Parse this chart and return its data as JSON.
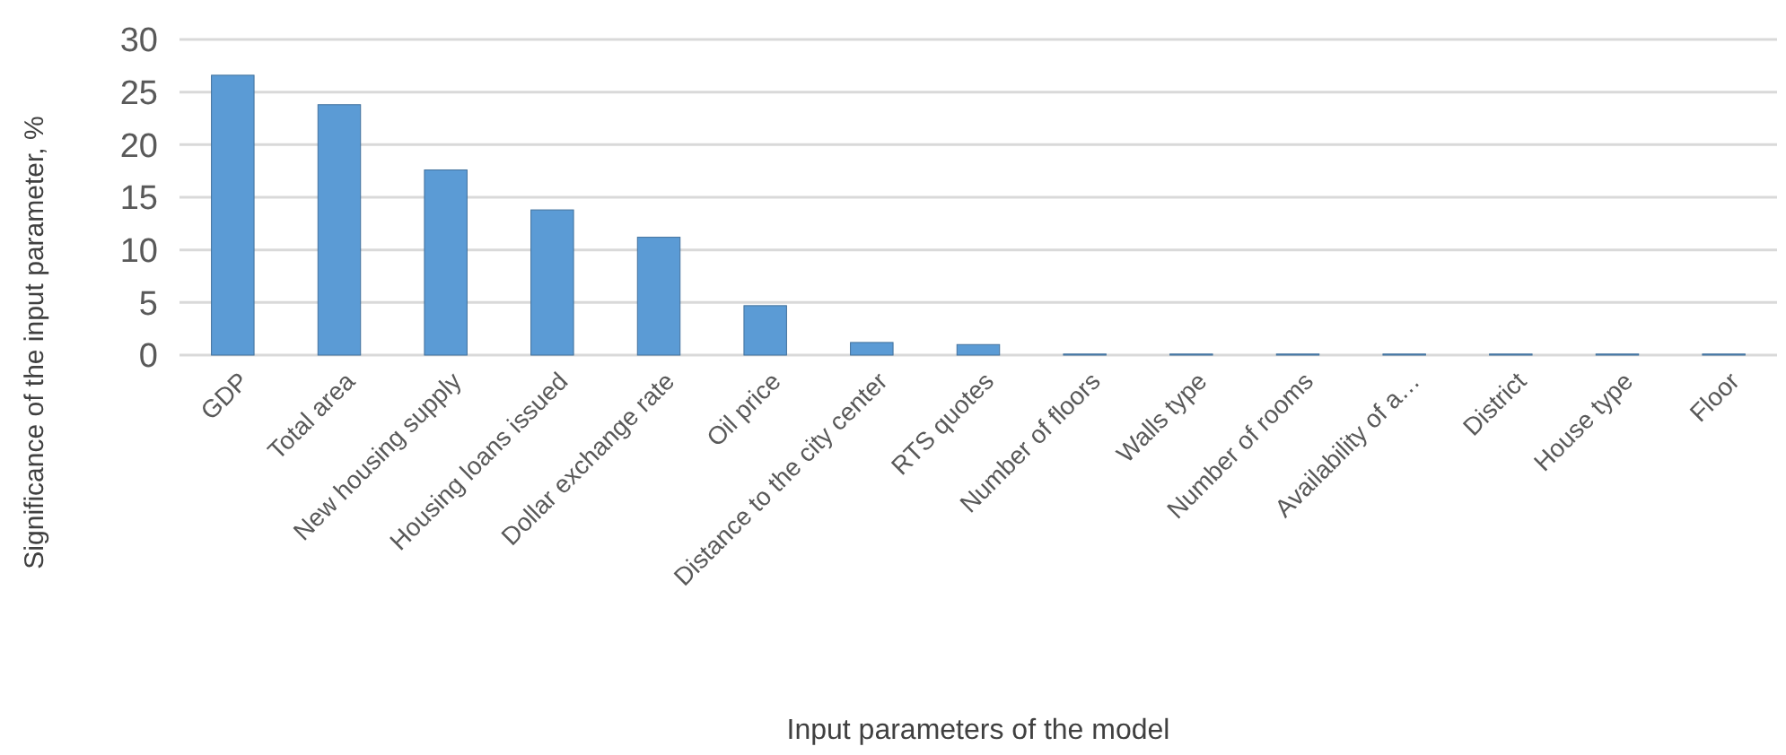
{
  "chart_data": {
    "type": "bar",
    "xlabel": "Input parameters of the model",
    "ylabel": "Significance of the input parameter, %",
    "categories": [
      "GDP",
      "Total area",
      "New housing supply",
      "Housing loans issued",
      "Dollar exchange rate",
      "Oil price",
      "Distance to the city center",
      "RTS quotes",
      "Number of floors",
      "Walls type",
      "Number of rooms",
      "Availability of a…",
      "District",
      "House type",
      "Floor"
    ],
    "values": [
      26.6,
      23.8,
      17.6,
      13.8,
      11.2,
      4.7,
      1.2,
      1.0,
      0.1,
      0.1,
      0.1,
      0.1,
      0.1,
      0.1,
      0.1
    ],
    "color": "#5b9bd5",
    "ylim": [
      0,
      30
    ],
    "yticks": [
      0,
      5,
      10,
      15,
      20,
      25,
      30
    ],
    "grid": true
  }
}
